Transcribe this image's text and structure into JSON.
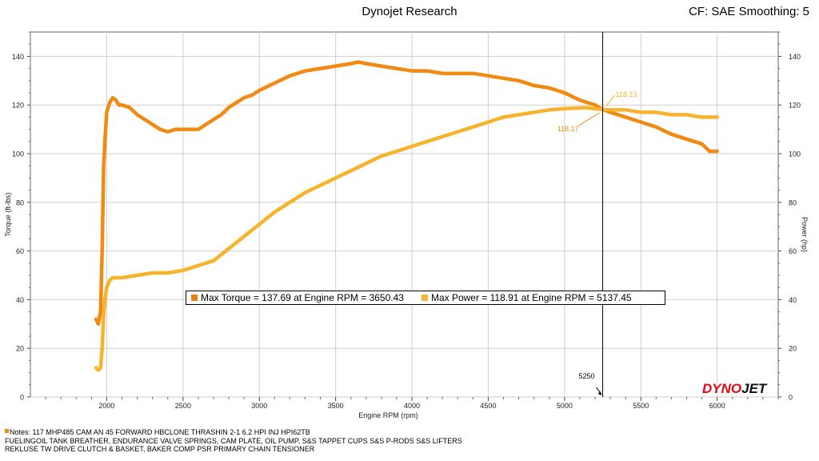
{
  "header": {
    "title": "Dynojet Research",
    "cf_label": "CF: SAE Smoothing: 5"
  },
  "colors": {
    "torque": "#f08a12",
    "power": "#f7b32b",
    "torque_legend": "#f07d0f",
    "power_legend": "#f9b233",
    "logo_red": "#e30613"
  },
  "legend": {
    "torque_text": "Max Torque = 137.69 at Engine RPM = 3650.43",
    "power_text": "Max Power = 118.91 at Engine RPM = 5137.45"
  },
  "cursor": {
    "rpm": 5250,
    "rpm_label": "5250",
    "torque_label": "118.17",
    "power_label": "118.13"
  },
  "logo": {
    "part1": "DYNO",
    "part2": "JET"
  },
  "notes": {
    "lines": [
      "Notes: 117 MHP485 CAM AN 45 FORWARD HBCLONE THRASHIN 2-1 6.2 HPI INJ HPI62TB",
      "FUELINGOIL TANK BREATHER,  ENDURANCE VALVE SPRINGS, CAM PLATE, OIL PUMP, S&S TAPPET CUPS S&S P-RODS S&S LIFTERS",
      "REKLUSE TW DRIVE CLUTCH & BASKET, BAKER COMP PSR PRIMARY CHAIN TENSIONER"
    ]
  },
  "chart_data": {
    "type": "line",
    "title": "Dynojet Research",
    "xlabel": "Engine RPM (rpm)",
    "ylabel": "Torque (ft-lbs)",
    "y2label": "Power (hp)",
    "xlim": [
      1500,
      6400
    ],
    "ylim": [
      0,
      150
    ],
    "y2lim": [
      0,
      150
    ],
    "x_ticks": [
      2000,
      2500,
      3000,
      3500,
      4000,
      4500,
      5000,
      5500,
      6000
    ],
    "x_tick_labels": [
      "2000",
      "2500",
      "3000",
      "3500",
      "4000",
      "4500",
      "5000",
      "5500",
      "6000"
    ],
    "y_ticks": [
      0,
      20,
      40,
      60,
      80,
      100,
      120,
      140
    ],
    "y_tick_labels": [
      "0",
      "20",
      "40",
      "60",
      "80",
      "100",
      "120",
      "140"
    ],
    "grid": true,
    "series": [
      {
        "name": "Torque",
        "axis": "left",
        "x": [
          1930,
          1945,
          1960,
          1970,
          1980,
          1990,
          2000,
          2020,
          2040,
          2060,
          2080,
          2100,
          2150,
          2200,
          2250,
          2300,
          2350,
          2400,
          2450,
          2500,
          2550,
          2600,
          2650,
          2700,
          2750,
          2800,
          2850,
          2900,
          2950,
          3000,
          3100,
          3200,
          3300,
          3400,
          3500,
          3600,
          3650,
          3700,
          3800,
          3900,
          4000,
          4100,
          4200,
          4300,
          4400,
          4500,
          4600,
          4700,
          4800,
          4900,
          5000,
          5100,
          5200,
          5250,
          5300,
          5400,
          5500,
          5600,
          5700,
          5800,
          5900,
          5950,
          6000
        ],
        "values": [
          32,
          30,
          35,
          60,
          95,
          107,
          117,
          121,
          123,
          122,
          120,
          120,
          119,
          116,
          114,
          112,
          110,
          109,
          110,
          110,
          110,
          110,
          112,
          114,
          116,
          119,
          121,
          123,
          124,
          126,
          129,
          132,
          134,
          135,
          136,
          137,
          137.69,
          137,
          136,
          135,
          134,
          134,
          133,
          133,
          133,
          132,
          131,
          130,
          128,
          127,
          125,
          122,
          120,
          118.17,
          117,
          115,
          113,
          111,
          108,
          106,
          104,
          101,
          101
        ]
      },
      {
        "name": "Power",
        "axis": "right",
        "x": [
          1930,
          1945,
          1960,
          1970,
          1980,
          1990,
          2000,
          2020,
          2040,
          2060,
          2080,
          2100,
          2200,
          2300,
          2400,
          2500,
          2600,
          2700,
          2800,
          2900,
          3000,
          3100,
          3200,
          3300,
          3400,
          3500,
          3600,
          3700,
          3800,
          3900,
          4000,
          4100,
          4200,
          4300,
          4400,
          4500,
          4600,
          4700,
          4800,
          4900,
          5000,
          5137,
          5200,
          5250,
          5300,
          5400,
          5500,
          5600,
          5700,
          5800,
          5900,
          6000
        ],
        "values": [
          12,
          11,
          12,
          20,
          34,
          41,
          45,
          48,
          49,
          49,
          49,
          49,
          50,
          51,
          51,
          52,
          54,
          56,
          61,
          66,
          71,
          76,
          80,
          84,
          87,
          90,
          93,
          96,
          99,
          101,
          103,
          105,
          107,
          109,
          111,
          113,
          115,
          116,
          117,
          118,
          118.5,
          118.91,
          118.5,
          118.13,
          118,
          118,
          117,
          117,
          116,
          116,
          115,
          115
        ]
      }
    ],
    "annotations": [
      {
        "text": "5250",
        "x": 5250,
        "type": "cursor"
      },
      {
        "text": "118.17",
        "x": 5250,
        "series": "Torque"
      },
      {
        "text": "118.13",
        "x": 5250,
        "series": "Power"
      }
    ]
  }
}
